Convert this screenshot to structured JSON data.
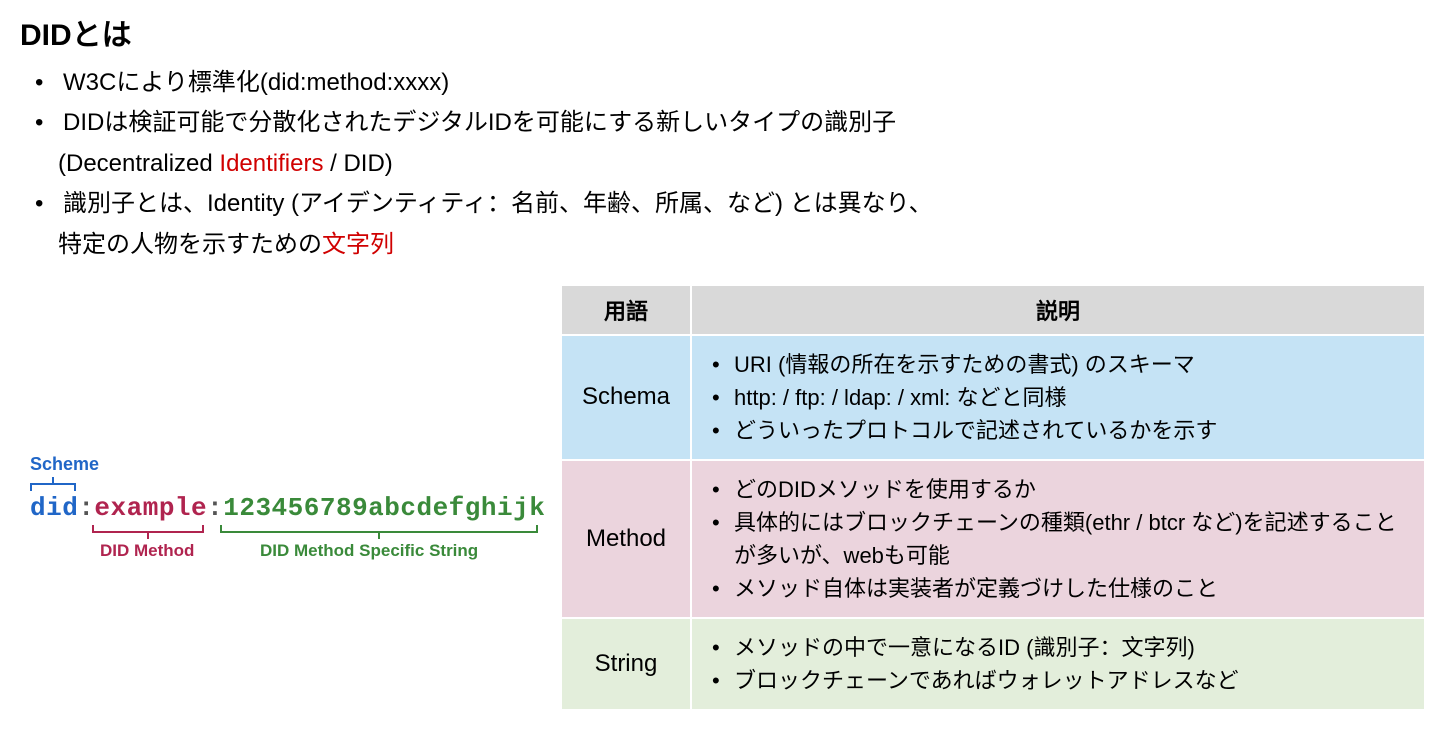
{
  "title": "DIDとは",
  "bullets": {
    "b1": "W3Cにより標準化(did:method:xxxx)",
    "b2": "DIDは検証可能で分散化されたデジタルIDを可能にする新しいタイプの識別子",
    "b2_sub_prefix": "(Decentralized ",
    "b2_sub_red": "Identifiers",
    "b2_sub_suffix": " / DID)",
    "b3_part1": "識別子とは、Identity (アイデンティティ：名前、年齢、所属、など) とは異なり、",
    "b3_part2_prefix": "特定の人物を示すための",
    "b3_part2_red": "文字列"
  },
  "diagram": {
    "scheme_label": "Scheme",
    "scheme_color": "#2066c7",
    "did_text": "did",
    "colon": ":",
    "example_text": "example",
    "method_color": "#b0244f",
    "string_text": "123456789abcdefghijk",
    "string_color": "#3a8a3a",
    "colon_color": "#555555",
    "method_label": "DID Method",
    "string_label": "DID Method Specific String"
  },
  "table": {
    "header_bg": "#d9d9d9",
    "col1": "用語",
    "col2": "説明",
    "rows": [
      {
        "term": "Schema",
        "bg": "#c5e3f5",
        "items": [
          "URI (情報の所在を示すための書式) のスキーマ",
          "http: / ftp: / ldap: / xml: などと同様",
          "どういったプロトコルで記述されているかを示す"
        ]
      },
      {
        "term": "Method",
        "bg": "#ebd4dd",
        "items": [
          "どのDIDメソッドを使用するか",
          "具体的にはブロックチェーンの種類(ethr / btcr など)を記述することが多いが、webも可能",
          "メソッド自体は実装者が定義づけした仕様のこと"
        ]
      },
      {
        "term": "String",
        "bg": "#e3eedb",
        "items": [
          "メソッドの中で一意になるID (識別子：文字列)",
          "ブロックチェーンであればウォレットアドレスなど"
        ]
      }
    ]
  }
}
